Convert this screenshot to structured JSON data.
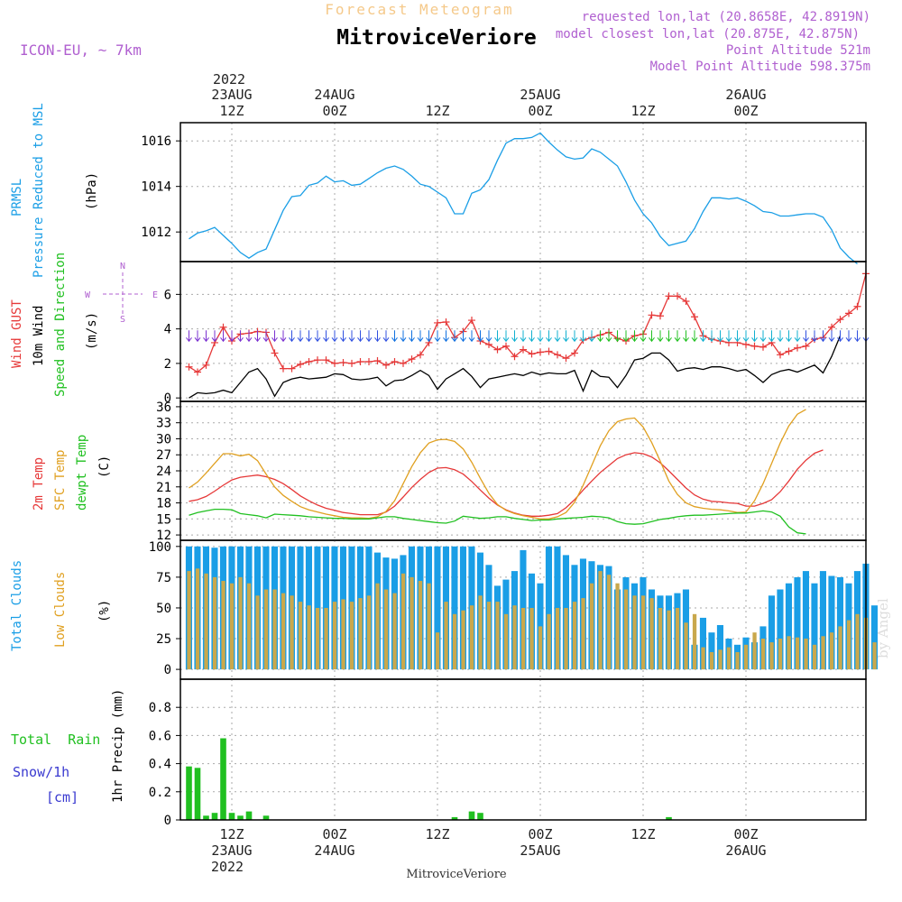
{
  "header": {
    "subtitle": "Forecast Meteogram",
    "title": "MitroviceVeriore",
    "model": "ICON-EU, ~ 7km",
    "requested": "requested lon,lat (20.8658E, 42.8919N)",
    "closest": "model closest lon,lat (20.875E, 42.875N)",
    "point_alt": "Point Altitude 521m",
    "model_alt": "Model Point Altitude 598.375m",
    "watermark": "by Angel"
  },
  "time_axis": {
    "top_year": "2022",
    "bottom_year": "2022",
    "labels": [
      {
        "hour": 12,
        "top": "12Z",
        "date": "23AUG"
      },
      {
        "hour": 24,
        "top": "00Z",
        "date": "24AUG"
      },
      {
        "hour": 36,
        "top": "12Z",
        "date": ""
      },
      {
        "hour": 48,
        "top": "00Z",
        "date": "25AUG"
      },
      {
        "hour": 60,
        "top": "12Z",
        "date": ""
      },
      {
        "hour": 72,
        "top": "00Z",
        "date": "26AUG"
      }
    ],
    "footer": "MitroviceVeriore"
  },
  "panels": {
    "pressure": {
      "label1": "PRMSL",
      "label2": "Pressure Reduced to MSL",
      "units": "(hPa)",
      "color": "#1a9ee6"
    },
    "wind": {
      "label_gust": "Wind GUST",
      "label_wind": "10m Wind",
      "label_dir": "Speed and Direction",
      "units": "(m/s)",
      "compass": {
        "n": "N",
        "s": "S",
        "w": "W",
        "e": "E"
      }
    },
    "temp": {
      "label_2m": "2m Temp",
      "label_sfc": "SFC Temp",
      "label_dew": "dewpt Temp",
      "units": "(C)"
    },
    "clouds": {
      "label_total": "Total Clouds",
      "label_low": "Low Clouds",
      "units": "(%)"
    },
    "precip": {
      "label_rain": "Total  Rain",
      "label_snow": "Snow/1h",
      "label_cm": "[cm]",
      "units": "1hr Precip (mm)"
    }
  },
  "chart_data": [
    {
      "type": "line",
      "title": "PRMSL Pressure Reduced to MSL",
      "ylabel": "(hPa)",
      "ylim": [
        1010.7,
        1016.8
      ],
      "yticks": [
        1012,
        1014,
        1016
      ],
      "x_start_hour": 7,
      "x_step_hours": 1,
      "series": [
        {
          "name": "PRMSL",
          "color": "#1a9ee6",
          "values": [
            1011.7,
            1011.95,
            1012.05,
            1012.2,
            1011.85,
            1011.5,
            1011.1,
            1010.85,
            1011.1,
            1011.25,
            1012.1,
            1012.95,
            1013.55,
            1013.6,
            1014.05,
            1014.15,
            1014.45,
            1014.2,
            1014.25,
            1014.05,
            1014.1,
            1014.35,
            1014.6,
            1014.8,
            1014.9,
            1014.75,
            1014.45,
            1014.1,
            1014,
            1013.75,
            1013.5,
            1012.8,
            1012.8,
            1013.7,
            1013.85,
            1014.3,
            1015.15,
            1015.9,
            1016.1,
            1016.1,
            1016.15,
            1016.35,
            1015.95,
            1015.6,
            1015.3,
            1015.2,
            1015.25,
            1015.65,
            1015.5,
            1015.2,
            1014.9,
            1014.2,
            1013.4,
            1012.8,
            1012.4,
            1011.8,
            1011.4,
            1011.5,
            1011.6,
            1012.15,
            1012.9,
            1013.5,
            1013.5,
            1013.45,
            1013.5,
            1013.35,
            1013.15,
            1012.9,
            1012.85,
            1012.7,
            1012.7,
            1012.75,
            1012.8,
            1012.8,
            1012.65,
            1012.1,
            1011.3,
            1010.9,
            1010.6
          ]
        }
      ]
    },
    {
      "type": "line",
      "title": "Wind GUST / 10m Wind Speed and Direction",
      "ylabel": "(m/s)",
      "ylim": [
        -0.2,
        7.9
      ],
      "yticks": [
        0,
        2,
        4,
        6
      ],
      "x_start_hour": 7,
      "x_step_hours": 1,
      "series": [
        {
          "name": "Wind GUST",
          "color": "#e63838",
          "values": [
            1.8,
            1.5,
            1.9,
            3.2,
            4.1,
            3.3,
            3.7,
            3.75,
            3.85,
            3.8,
            2.6,
            1.7,
            1.7,
            1.95,
            2.1,
            2.2,
            2.2,
            2,
            2.05,
            2,
            2.1,
            2.1,
            2.15,
            1.9,
            2.1,
            2,
            2.25,
            2.5,
            3.2,
            4.35,
            4.4,
            3.5,
            3.85,
            4.5,
            3.3,
            3.1,
            2.8,
            3,
            2.4,
            2.8,
            2.55,
            2.65,
            2.7,
            2.5,
            2.3,
            2.6,
            3.35,
            3.5,
            3.65,
            3.8,
            3.45,
            3.3,
            3.6,
            3.7,
            4.8,
            4.75,
            5.9,
            5.9,
            5.6,
            4.7,
            3.6,
            3.4,
            3.3,
            3.2,
            3.2,
            3.1,
            3,
            2.95,
            3.2,
            2.5,
            2.7,
            2.9,
            3,
            3.4,
            3.5,
            4.1,
            4.55,
            4.9,
            5.3,
            7.2
          ]
        },
        {
          "name": "10m Wind",
          "color": "#000000",
          "values": [
            0,
            0.3,
            0.25,
            0.3,
            0.45,
            0.3,
            0.9,
            1.5,
            1.7,
            1.1,
            0.1,
            0.9,
            1.1,
            1.2,
            1.1,
            1.15,
            1.2,
            1.4,
            1.35,
            1.1,
            1.05,
            1.1,
            1.2,
            0.7,
            1,
            1.05,
            1.3,
            1.6,
            1.3,
            0.5,
            1.1,
            1.4,
            1.7,
            1.25,
            0.6,
            1.1,
            1.2,
            1.3,
            1.4,
            1.3,
            1.5,
            1.35,
            1.45,
            1.4,
            1.4,
            1.6,
            0.4,
            1.6,
            1.25,
            1.2,
            0.6,
            1.3,
            2.2,
            2.3,
            2.6,
            2.6,
            2.2,
            1.55,
            1.7,
            1.75,
            1.65,
            1.8,
            1.8,
            1.7,
            1.55,
            1.65,
            1.3,
            0.9,
            1.35,
            1.55,
            1.65,
            1.5,
            1.7,
            1.9,
            1.45,
            2.4,
            3.6
          ]
        }
      ]
    },
    {
      "type": "line",
      "title": "2m Temp / SFC Temp / dewpt Temp",
      "ylabel": "(C)",
      "ylim": [
        11,
        37
      ],
      "yticks": [
        12,
        15,
        18,
        21,
        24,
        27,
        30,
        33,
        36
      ],
      "x_start_hour": 7,
      "x_step_hours": 1,
      "series": [
        {
          "name": "2m Temp",
          "color": "#e63838",
          "values": [
            18.3,
            18.6,
            19.2,
            20.2,
            21.3,
            22.3,
            22.8,
            23,
            23.2,
            22.9,
            22.4,
            21.6,
            20.5,
            19.3,
            18.4,
            17.6,
            17,
            16.6,
            16.2,
            16,
            15.8,
            15.8,
            15.8,
            16.3,
            17.4,
            19.1,
            20.9,
            22.4,
            23.7,
            24.5,
            24.6,
            24.2,
            23.4,
            22,
            20.4,
            18.9,
            17.6,
            16.7,
            16.1,
            15.7,
            15.5,
            15.5,
            15.7,
            16,
            17.1,
            18.6,
            20.4,
            22.1,
            23.7,
            25,
            26.3,
            27,
            27.4,
            27.2,
            26.6,
            25.5,
            24,
            22.4,
            20.8,
            19.5,
            18.7,
            18.3,
            18.2,
            18,
            17.9,
            17.4,
            17.4,
            17.9,
            18.6,
            20.1,
            22.1,
            24.3,
            26,
            27.3,
            27.9
          ]
        },
        {
          "name": "SFC Temp",
          "color": "#e0a020",
          "values": [
            20.8,
            21.9,
            23.6,
            25.4,
            27.2,
            27.2,
            26.8,
            27.1,
            25.9,
            23.4,
            21,
            19.4,
            18.3,
            17.3,
            16.7,
            16.3,
            15.9,
            15.6,
            15.3,
            15.2,
            15.2,
            15.1,
            15.4,
            16.4,
            18.4,
            21.6,
            24.8,
            27.4,
            29.2,
            29.8,
            29.9,
            29.5,
            28.1,
            25.6,
            22.6,
            19.8,
            17.7,
            16.6,
            16,
            15.6,
            15.3,
            15,
            15,
            15.4,
            16.2,
            18.1,
            21.3,
            25,
            28.7,
            31.5,
            33.2,
            33.7,
            33.9,
            32.2,
            29.3,
            25.8,
            22.1,
            19.6,
            18,
            17.3,
            17,
            16.8,
            16.7,
            16.5,
            16.2,
            16.3,
            18.4,
            21.6,
            25.4,
            29.2,
            32.4,
            34.6,
            35.5
          ]
        },
        {
          "name": "dewpt Temp",
          "color": "#20c020",
          "values": [
            15.7,
            16.2,
            16.5,
            16.8,
            16.8,
            16.7,
            16,
            15.8,
            15.6,
            15.2,
            15.9,
            15.8,
            15.7,
            15.6,
            15.4,
            15.3,
            15.2,
            15.1,
            15.1,
            15,
            15,
            15,
            15.2,
            15.4,
            15.4,
            15.1,
            14.9,
            14.7,
            14.5,
            14.3,
            14.2,
            14.6,
            15.5,
            15.3,
            15.1,
            15.2,
            15.4,
            15.4,
            15.1,
            14.9,
            14.7,
            14.8,
            14.8,
            15,
            15.1,
            15.2,
            15.3,
            15.5,
            15.4,
            15.2,
            14.5,
            14.1,
            14,
            14.1,
            14.5,
            14.9,
            15.1,
            15.4,
            15.6,
            15.7,
            15.7,
            15.8,
            15.9,
            16,
            16.1,
            16.1,
            16.3,
            16.5,
            16.3,
            15.5,
            13.5,
            12.4,
            12.2
          ]
        }
      ]
    },
    {
      "type": "bar",
      "title": "Total Clouds / Low Clouds",
      "ylabel": "(%)",
      "ylim": [
        -8,
        105
      ],
      "yticks": [
        0,
        25,
        50,
        75,
        100
      ],
      "x_start_hour": 7,
      "x_step_hours": 1,
      "series": [
        {
          "name": "Total Clouds",
          "color": "#1a9ee6",
          "values": [
            100,
            100,
            100,
            99,
            100,
            100,
            100,
            100,
            100,
            100,
            100,
            100,
            100,
            100,
            100,
            100,
            100,
            100,
            100,
            100,
            100,
            100,
            95,
            91,
            90,
            93,
            100,
            100,
            100,
            100,
            100,
            100,
            100,
            100,
            95,
            85,
            68,
            73,
            80,
            97,
            78,
            70,
            100,
            100,
            93,
            85,
            90,
            88,
            85,
            84,
            65,
            75,
            70,
            75,
            65,
            60,
            60,
            62,
            65,
            20,
            42,
            30,
            36,
            25,
            20,
            26,
            22,
            35,
            60,
            65,
            70,
            75,
            80,
            70,
            80,
            76,
            75,
            70,
            80,
            86,
            52
          ]
        },
        {
          "name": "Low Clouds",
          "color": "#c9a84c",
          "values": [
            80,
            82,
            78,
            75,
            72,
            70,
            75,
            70,
            60,
            65,
            65,
            62,
            60,
            55,
            52,
            50,
            50,
            55,
            57,
            55,
            58,
            60,
            70,
            65,
            62,
            78,
            75,
            72,
            70,
            30,
            55,
            45,
            48,
            52,
            60,
            55,
            55,
            45,
            52,
            50,
            50,
            35,
            45,
            50,
            50,
            55,
            58,
            70,
            80,
            77,
            70,
            65,
            60,
            60,
            58,
            50,
            48,
            50,
            38,
            45,
            18,
            14,
            16,
            18,
            14,
            20,
            30,
            25,
            22,
            25,
            27,
            26,
            25,
            20,
            27,
            30,
            35,
            40,
            45,
            42,
            22
          ]
        }
      ]
    },
    {
      "type": "bar",
      "title": "1hr Precip",
      "ylabel": "1hr Precip (mm)",
      "ylim": [
        0,
        1.0
      ],
      "yticks": [
        0,
        0.2,
        0.4,
        0.6,
        0.8
      ],
      "x_start_hour": 7,
      "x_step_hours": 1,
      "series": [
        {
          "name": "Total Rain",
          "color": "#20c020",
          "values": [
            0.38,
            0.37,
            0.03,
            0.05,
            0.58,
            0.05,
            0.03,
            0.06,
            0,
            0.03,
            0,
            0,
            0,
            0,
            0,
            0,
            0,
            0,
            0,
            0,
            0,
            0,
            0,
            0,
            0,
            0,
            0,
            0,
            0,
            0,
            0,
            0.02,
            0,
            0.06,
            0.05,
            0,
            0,
            0,
            0,
            0,
            0,
            0,
            0,
            0,
            0,
            0,
            0,
            0,
            0,
            0,
            0,
            0,
            0,
            0,
            0,
            0,
            0.02,
            0,
            0,
            0,
            0,
            0,
            0,
            0,
            0,
            0,
            0,
            0,
            0,
            0,
            0,
            0,
            0,
            0,
            0,
            0,
            0,
            0
          ]
        }
      ]
    }
  ]
}
